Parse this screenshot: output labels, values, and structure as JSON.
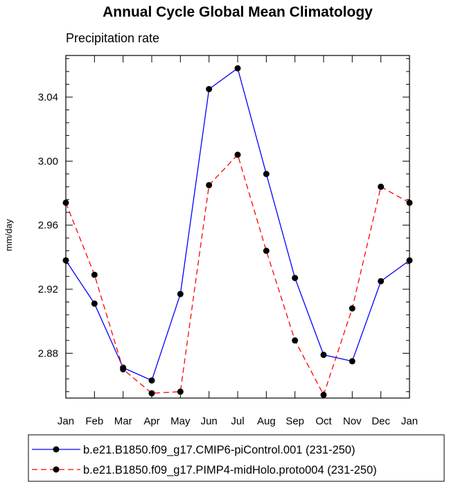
{
  "chart_data": {
    "type": "line",
    "title": "Annual Cycle Global Mean Climatology",
    "subtitle": "Precipitation rate",
    "xlabel": "",
    "ylabel": "mm/day",
    "categories": [
      "Jan",
      "Feb",
      "Mar",
      "Apr",
      "May",
      "Jun",
      "Jul",
      "Aug",
      "Sep",
      "Oct",
      "Nov",
      "Dec",
      "Jan"
    ],
    "ylim": [
      2.852,
      3.066
    ],
    "yticks": [
      2.88,
      2.92,
      2.96,
      3.0,
      3.04
    ],
    "ytick_labels": [
      "2.88",
      "2.92",
      "2.96",
      "3.00",
      "3.04"
    ],
    "legend_position": "bottom",
    "series": [
      {
        "name": "b.e21.B1850.f09_g17.CMIP6-piControl.001 (231-250)",
        "color": "#0000ff",
        "dash": "solid",
        "values": [
          2.938,
          2.911,
          2.871,
          2.863,
          2.917,
          3.045,
          3.058,
          2.992,
          2.927,
          2.879,
          2.875,
          2.925,
          2.938
        ]
      },
      {
        "name": "b.e21.B1850.f09_g17.PIMP4-midHolo.proto004 (231-250)",
        "color": "#ff0000",
        "dash": "dashed",
        "values": [
          2.974,
          2.929,
          2.87,
          2.855,
          2.856,
          2.985,
          3.004,
          2.944,
          2.888,
          2.854,
          2.908,
          2.984,
          2.974
        ]
      }
    ]
  }
}
